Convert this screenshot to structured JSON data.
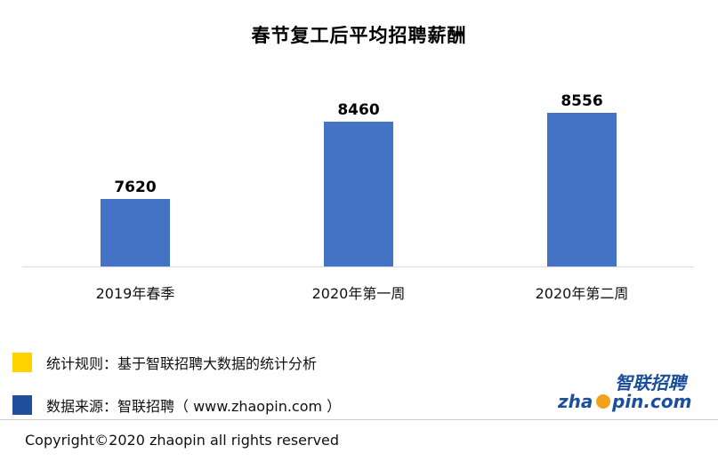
{
  "chart_data": {
    "type": "bar",
    "title": "春节复工后平均招聘薪酬",
    "categories": [
      "2019年春季",
      "2020年第一周",
      "2020年第二周"
    ],
    "series": [
      {
        "values": [
          7620,
          8460,
          8556
        ],
        "color": "#4472c4"
      }
    ],
    "data_labels": [
      "7620",
      "8460",
      "8556"
    ],
    "ylim": [
      6000,
      9000
    ],
    "grid": false,
    "axis_visible": false
  },
  "legend": {
    "items": [
      {
        "color": "#ffd200",
        "label": "统计规则：基于智联招聘大数据的统计分析"
      },
      {
        "color": "#1f4e9c",
        "label": "数据来源：智联招聘（ www.zhaopin.com ）"
      }
    ]
  },
  "logo": {
    "brand_cn": "智联招聘",
    "brand_en_left": "zha",
    "brand_en_right": "pin.com",
    "colors": {
      "blue": "#1b4f9c",
      "orange": "#f4a11d"
    }
  },
  "footer": {
    "copyright": "Copyright©2020 zhaopin all rights reserved"
  }
}
